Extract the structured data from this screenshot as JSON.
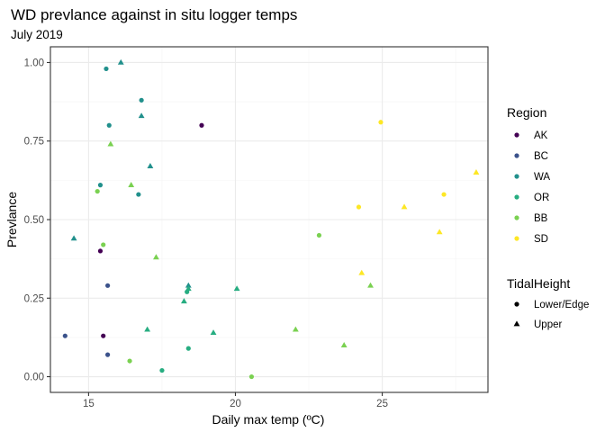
{
  "chart_data": {
    "type": "scatter",
    "title": "WD prevlance against in situ logger temps",
    "subtitle": "July 2019",
    "xlabel": "Daily max temp (ºC)",
    "ylabel": "Prevlance",
    "xlim": [
      13.7,
      28.6
    ],
    "ylim": [
      -0.05,
      1.05
    ],
    "x_ticks": [
      15,
      20,
      25
    ],
    "y_ticks": [
      0.0,
      0.25,
      0.5,
      0.75,
      1.0
    ],
    "x_tick_labels": [
      "15",
      "20",
      "25"
    ],
    "y_tick_labels": [
      "0.00",
      "0.25",
      "0.50",
      "0.75",
      "1.00"
    ],
    "grid": true,
    "legend_position": "right",
    "color_legend": {
      "title": "Region",
      "items": [
        {
          "label": "AK",
          "color": "#440154"
        },
        {
          "label": "BC",
          "color": "#3b528b"
        },
        {
          "label": "WA",
          "color": "#21908c"
        },
        {
          "label": "OR",
          "color": "#27ad81"
        },
        {
          "label": "BB",
          "color": "#7ad151"
        },
        {
          "label": "SD",
          "color": "#fde725"
        }
      ]
    },
    "shape_legend": {
      "title": "TidalHeight",
      "items": [
        {
          "label": "Lower/Edge",
          "shape": "circle"
        },
        {
          "label": "Upper",
          "shape": "triangle"
        }
      ]
    },
    "points": [
      {
        "x": 18.85,
        "y": 0.8,
        "region": "AK",
        "tide": "Lower/Edge"
      },
      {
        "x": 15.4,
        "y": 0.4,
        "region": "AK",
        "tide": "Lower/Edge"
      },
      {
        "x": 15.5,
        "y": 0.13,
        "region": "AK",
        "tide": "Lower/Edge"
      },
      {
        "x": 15.65,
        "y": 0.29,
        "region": "BC",
        "tide": "Lower/Edge"
      },
      {
        "x": 14.2,
        "y": 0.13,
        "region": "BC",
        "tide": "Lower/Edge"
      },
      {
        "x": 15.65,
        "y": 0.07,
        "region": "BC",
        "tide": "Lower/Edge"
      },
      {
        "x": 15.6,
        "y": 0.98,
        "region": "WA",
        "tide": "Lower/Edge"
      },
      {
        "x": 16.1,
        "y": 1.0,
        "region": "WA",
        "tide": "Upper"
      },
      {
        "x": 16.8,
        "y": 0.88,
        "region": "WA",
        "tide": "Lower/Edge"
      },
      {
        "x": 15.7,
        "y": 0.8,
        "region": "WA",
        "tide": "Lower/Edge"
      },
      {
        "x": 16.8,
        "y": 0.83,
        "region": "WA",
        "tide": "Upper"
      },
      {
        "x": 17.1,
        "y": 0.67,
        "region": "WA",
        "tide": "Upper"
      },
      {
        "x": 15.4,
        "y": 0.61,
        "region": "WA",
        "tide": "Lower/Edge"
      },
      {
        "x": 16.7,
        "y": 0.58,
        "region": "WA",
        "tide": "Lower/Edge"
      },
      {
        "x": 14.5,
        "y": 0.44,
        "region": "WA",
        "tide": "Upper"
      },
      {
        "x": 18.4,
        "y": 0.29,
        "region": "WA",
        "tide": "Upper"
      },
      {
        "x": 18.4,
        "y": 0.28,
        "region": "OR",
        "tide": "Upper"
      },
      {
        "x": 18.35,
        "y": 0.27,
        "region": "OR",
        "tide": "Lower/Edge"
      },
      {
        "x": 20.05,
        "y": 0.28,
        "region": "OR",
        "tide": "Upper"
      },
      {
        "x": 18.25,
        "y": 0.24,
        "region": "OR",
        "tide": "Upper"
      },
      {
        "x": 17.0,
        "y": 0.15,
        "region": "OR",
        "tide": "Upper"
      },
      {
        "x": 19.25,
        "y": 0.14,
        "region": "OR",
        "tide": "Upper"
      },
      {
        "x": 18.4,
        "y": 0.09,
        "region": "OR",
        "tide": "Lower/Edge"
      },
      {
        "x": 17.5,
        "y": 0.02,
        "region": "OR",
        "tide": "Lower/Edge"
      },
      {
        "x": 15.75,
        "y": 0.74,
        "region": "BB",
        "tide": "Upper"
      },
      {
        "x": 15.3,
        "y": 0.59,
        "region": "BB",
        "tide": "Lower/Edge"
      },
      {
        "x": 16.45,
        "y": 0.61,
        "region": "BB",
        "tide": "Upper"
      },
      {
        "x": 15.5,
        "y": 0.42,
        "region": "BB",
        "tide": "Lower/Edge"
      },
      {
        "x": 17.3,
        "y": 0.38,
        "region": "BB",
        "tide": "Upper"
      },
      {
        "x": 22.85,
        "y": 0.45,
        "region": "BB",
        "tide": "Lower/Edge"
      },
      {
        "x": 24.6,
        "y": 0.29,
        "region": "BB",
        "tide": "Upper"
      },
      {
        "x": 22.05,
        "y": 0.15,
        "region": "BB",
        "tide": "Upper"
      },
      {
        "x": 23.7,
        "y": 0.1,
        "region": "BB",
        "tide": "Upper"
      },
      {
        "x": 16.4,
        "y": 0.05,
        "region": "BB",
        "tide": "Lower/Edge"
      },
      {
        "x": 20.55,
        "y": 0.0,
        "region": "BB",
        "tide": "Lower/Edge"
      },
      {
        "x": 24.95,
        "y": 0.81,
        "region": "SD",
        "tide": "Lower/Edge"
      },
      {
        "x": 28.2,
        "y": 0.65,
        "region": "SD",
        "tide": "Upper"
      },
      {
        "x": 27.1,
        "y": 0.58,
        "region": "SD",
        "tide": "Lower/Edge"
      },
      {
        "x": 24.2,
        "y": 0.54,
        "region": "SD",
        "tide": "Lower/Edge"
      },
      {
        "x": 25.75,
        "y": 0.54,
        "region": "SD",
        "tide": "Upper"
      },
      {
        "x": 26.95,
        "y": 0.46,
        "region": "SD",
        "tide": "Upper"
      },
      {
        "x": 24.3,
        "y": 0.33,
        "region": "SD",
        "tide": "Upper"
      }
    ]
  }
}
